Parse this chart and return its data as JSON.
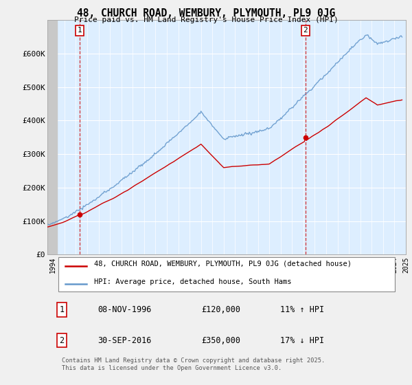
{
  "title": "48, CHURCH ROAD, WEMBURY, PLYMOUTH, PL9 0JG",
  "subtitle": "Price paid vs. HM Land Registry's House Price Index (HPI)",
  "legend_line1": "48, CHURCH ROAD, WEMBURY, PLYMOUTH, PL9 0JG (detached house)",
  "legend_line2": "HPI: Average price, detached house, South Hams",
  "sale1_date_label": "08-NOV-1996",
  "sale1_price_label": "£120,000",
  "sale1_hpi_label": "11% ↑ HPI",
  "sale2_date_label": "30-SEP-2016",
  "sale2_price_label": "£350,000",
  "sale2_hpi_label": "17% ↓ HPI",
  "footer": "Contains HM Land Registry data © Crown copyright and database right 2025.\nThis data is licensed under the Open Government Licence v3.0.",
  "property_color": "#cc0000",
  "hpi_color": "#6699cc",
  "chart_bg_color": "#ddeeff",
  "background_color": "#f0f0f0",
  "plot_bg_color": "#ddeeff",
  "ylim": [
    0,
    700000
  ],
  "yticks": [
    0,
    100000,
    200000,
    300000,
    400000,
    500000,
    600000
  ],
  "ytick_labels": [
    "£0",
    "£100K",
    "£200K",
    "£300K",
    "£400K",
    "£500K",
    "£600K"
  ],
  "xstart_year": 1994,
  "xend_year": 2025
}
